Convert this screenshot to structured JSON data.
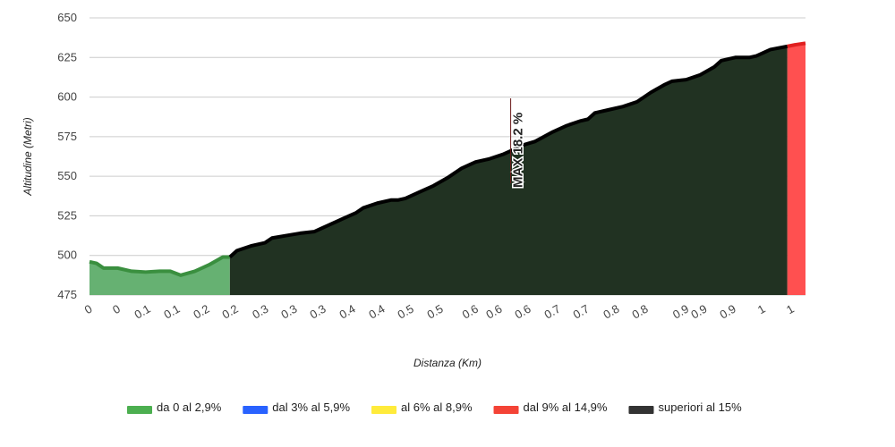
{
  "chart_data": {
    "type": "area",
    "ylabel": "Altitudine (Metri)",
    "xlabel": "Distanza (Km)",
    "xlim": [
      0,
      1.02
    ],
    "xticks": [
      {
        "value": 0,
        "label": "0"
      },
      {
        "value": 0.04,
        "label": "0"
      },
      {
        "value": 0.083,
        "label": "0.1"
      },
      {
        "value": 0.125,
        "label": "0.1"
      },
      {
        "value": 0.167,
        "label": "0.2"
      },
      {
        "value": 0.208,
        "label": "0.2"
      },
      {
        "value": 0.251,
        "label": "0.3"
      },
      {
        "value": 0.292,
        "label": "0.3"
      },
      {
        "value": 0.333,
        "label": "0.3"
      },
      {
        "value": 0.375,
        "label": "0.4"
      },
      {
        "value": 0.417,
        "label": "0.4"
      },
      {
        "value": 0.458,
        "label": "0.5"
      },
      {
        "value": 0.5,
        "label": "0.5"
      },
      {
        "value": 0.55,
        "label": "0.6"
      },
      {
        "value": 0.584,
        "label": "0.6"
      },
      {
        "value": 0.625,
        "label": "0.6"
      },
      {
        "value": 0.667,
        "label": "0.7"
      },
      {
        "value": 0.708,
        "label": "0.7"
      },
      {
        "value": 0.751,
        "label": "0.8"
      },
      {
        "value": 0.792,
        "label": "0.8"
      },
      {
        "value": 0.85,
        "label": "0.9"
      },
      {
        "value": 0.876,
        "label": "0.9"
      },
      {
        "value": 0.917,
        "label": "0.9"
      },
      {
        "value": 0.959,
        "label": "1"
      },
      {
        "value": 1.0,
        "label": "1"
      }
    ],
    "ylim": [
      475,
      650
    ],
    "yticks": [
      475,
      500,
      525,
      550,
      575,
      600,
      625,
      650
    ],
    "grid": true,
    "annotation": {
      "text": "MAX 18.2 %",
      "x": 0.6
    },
    "series": [
      {
        "name": "da 0 al 2,9%",
        "color": "#4caf50",
        "stroke": "#3a8f3f",
        "fill": "#66b172",
        "x": [
          0,
          0.01,
          0.02,
          0.04,
          0.06,
          0.08,
          0.1,
          0.115,
          0.13,
          0.15,
          0.17,
          0.19,
          0.2
        ],
        "values": [
          496,
          495,
          492,
          492,
          490,
          489.5,
          490,
          490,
          487.5,
          490,
          494,
          499,
          499
        ]
      },
      {
        "name": "dal 3% al 5,9%",
        "color": "#2962ff",
        "stroke": "#2962ff",
        "fill": "#2962ff",
        "x": [],
        "values": []
      },
      {
        "name": "al 6% al 8,9%",
        "color": "#ffeb3b",
        "stroke": "#ffeb3b",
        "fill": "#ffeb3b",
        "x": [],
        "values": []
      },
      {
        "name": "dal 9% al 14,9%",
        "color": "#f44336",
        "stroke": "#e02020",
        "fill": "#ff5050",
        "x": [
          0.994,
          1.005,
          1.02
        ],
        "values": [
          632,
          633,
          634
        ]
      },
      {
        "name": "superiori al 15%",
        "color": "#333333",
        "stroke": "#000000",
        "fill": "#213222",
        "x": [
          0.2,
          0.21,
          0.23,
          0.25,
          0.26,
          0.28,
          0.3,
          0.32,
          0.34,
          0.36,
          0.38,
          0.39,
          0.41,
          0.43,
          0.44,
          0.45,
          0.47,
          0.49,
          0.51,
          0.53,
          0.55,
          0.57,
          0.59,
          0.6,
          0.61,
          0.62,
          0.635,
          0.66,
          0.68,
          0.7,
          0.71,
          0.72,
          0.74,
          0.76,
          0.78,
          0.8,
          0.82,
          0.83,
          0.85,
          0.87,
          0.89,
          0.9,
          0.92,
          0.94,
          0.95,
          0.97,
          0.994
        ],
        "values": [
          499,
          503,
          506,
          508,
          511,
          512.5,
          514,
          515,
          519,
          523,
          527,
          530,
          533,
          535,
          535,
          536,
          540,
          544,
          549,
          555,
          559,
          561,
          564,
          566,
          568,
          570,
          572,
          578,
          582,
          585,
          586,
          590,
          592,
          594,
          597,
          603,
          608,
          610,
          611,
          614,
          619,
          623,
          625,
          625,
          626,
          630,
          632
        ]
      }
    ]
  }
}
